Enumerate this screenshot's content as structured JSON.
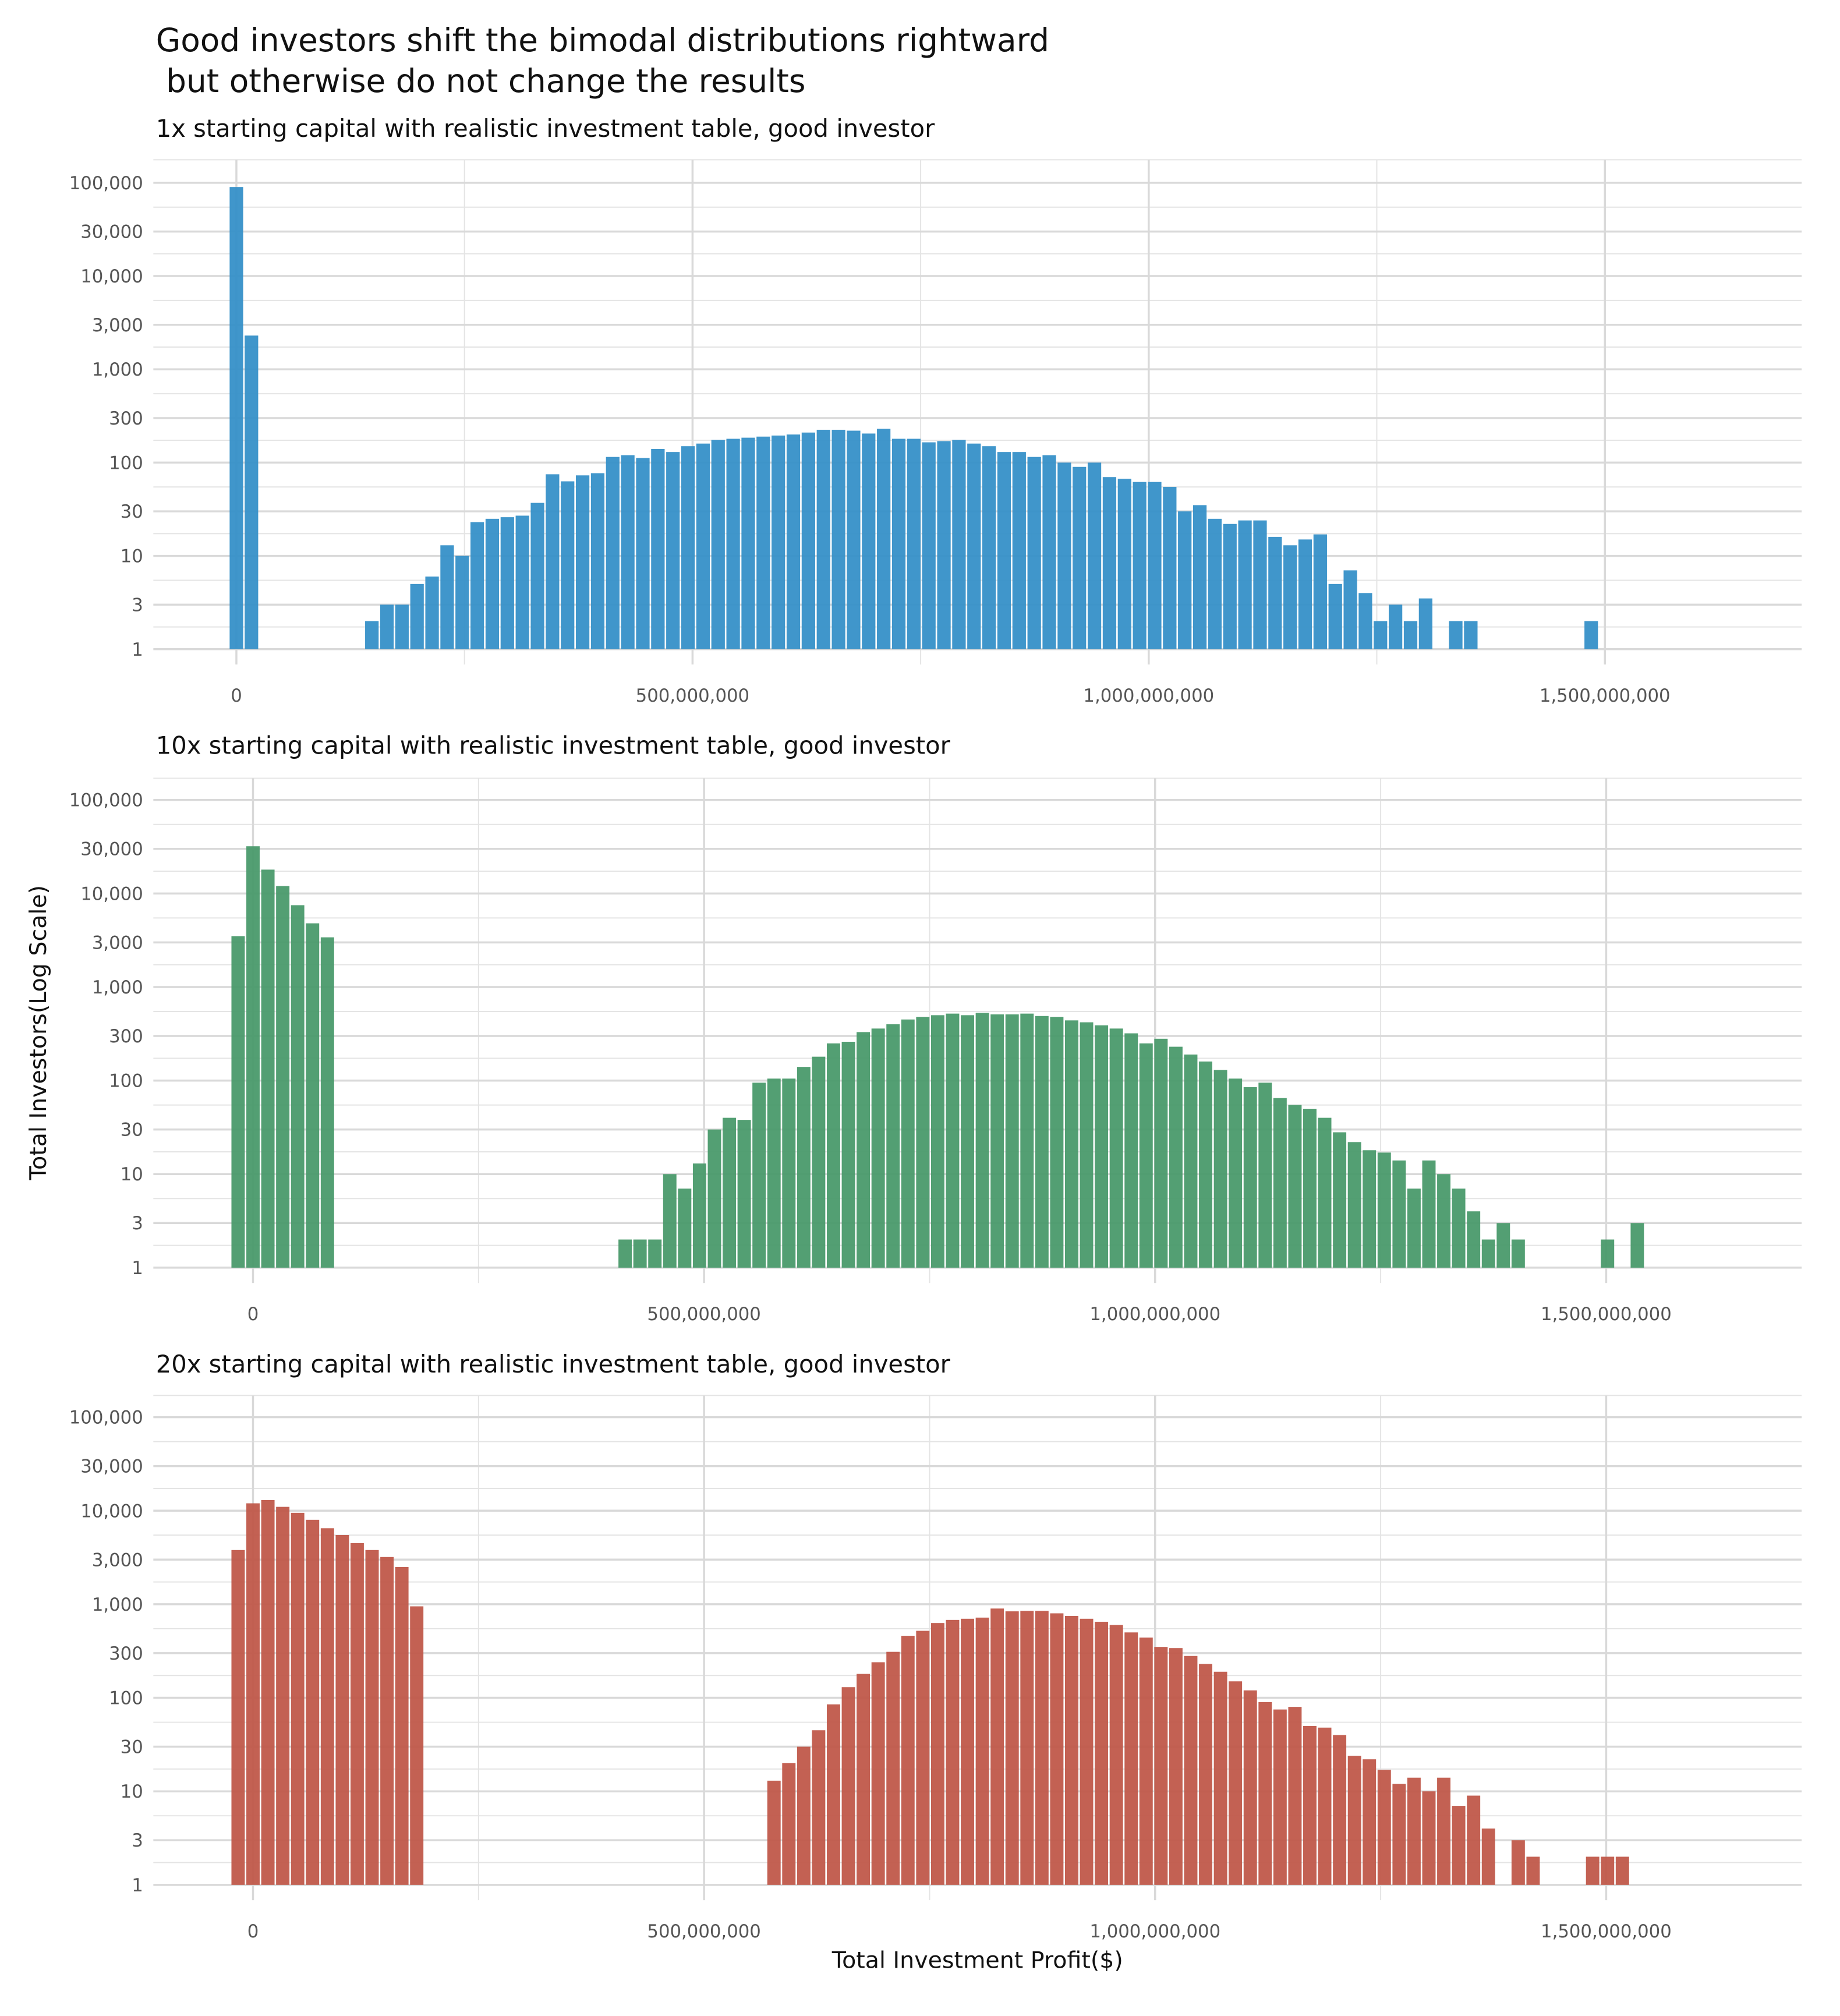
{
  "chart_data": {
    "type": "bar",
    "title_line1": "Good investors shift the bimodal distributions rightward",
    "title_line2": " but otherwise do not change the results",
    "xlabel": "Total Investment Profit($)",
    "ylabel": "Total Investors(Log Scale)",
    "y_scale": "log10",
    "ylim": [
      1,
      150000
    ],
    "y_ticks": [
      1,
      3,
      10,
      30,
      100,
      300,
      1000,
      3000,
      10000,
      30000,
      100000
    ],
    "y_tick_labels": [
      "1",
      "3",
      "10",
      "30",
      "100",
      "300",
      "1,000",
      "3,000",
      "10,000",
      "30,000",
      "100,000"
    ],
    "x_ticks": [
      0,
      500000000,
      1000000000,
      1500000000
    ],
    "x_tick_labels": [
      "0",
      "500,000,000",
      "1,000,000,000",
      "1,500,000,000"
    ],
    "grid": true,
    "panels": [
      {
        "subtitle": "1x starting capital with realistic investment table, good investor",
        "color": "#3690c8",
        "xlim": [
          -180000000,
          1710000000
        ],
        "bin_width": 16500000,
        "first_bin_center": 0,
        "counts": [
          90000,
          2300,
          0,
          0,
          0,
          0,
          0,
          0,
          0,
          2,
          3,
          3,
          5,
          6,
          13,
          10,
          23,
          25,
          26,
          27,
          37,
          75,
          63,
          73,
          77,
          115,
          120,
          112,
          140,
          130,
          150,
          160,
          175,
          180,
          185,
          190,
          195,
          200,
          210,
          225,
          225,
          220,
          205,
          230,
          180,
          180,
          165,
          170,
          175,
          160,
          150,
          130,
          130,
          115,
          120,
          100,
          90,
          100,
          70,
          67,
          62,
          62,
          55,
          30,
          35,
          25,
          22,
          24,
          24,
          16,
          13,
          15,
          17,
          5,
          7,
          4,
          2,
          3,
          2,
          3.5,
          0,
          2,
          2,
          0,
          0,
          0,
          0,
          0,
          0,
          0,
          2
        ]
      },
      {
        "subtitle": "10x starting capital with realistic investment table, good investor",
        "color": "#4a9a6c",
        "xlim": [
          -220000000,
          1710000000
        ],
        "bin_width": 16500000,
        "first_bin_center": -16500000,
        "counts": [
          3500,
          32000,
          18000,
          12000,
          7500,
          4800,
          3400,
          0,
          0,
          0,
          0,
          0,
          0,
          0,
          0,
          0,
          0,
          0,
          0,
          0,
          0,
          0,
          0,
          0,
          0,
          0,
          2,
          2,
          2,
          10,
          7,
          13,
          30,
          40,
          38,
          95,
          105,
          105,
          140,
          180,
          250,
          260,
          330,
          360,
          400,
          450,
          480,
          500,
          520,
          500,
          530,
          510,
          510,
          520,
          490,
          480,
          440,
          420,
          390,
          360,
          320,
          250,
          280,
          230,
          190,
          160,
          130,
          105,
          85,
          95,
          65,
          55,
          50,
          40,
          28,
          22,
          18,
          17,
          14,
          7,
          14,
          10,
          7,
          4,
          2,
          3,
          2,
          0,
          0,
          0,
          0,
          0,
          2,
          0,
          3
        ]
      },
      {
        "subtitle": "20x starting capital with realistic investment table, good investor",
        "color": "#c0584a",
        "xlim": [
          -220000000,
          1710000000
        ],
        "bin_width": 16500000,
        "first_bin_center": -16500000,
        "counts": [
          3800,
          12000,
          13000,
          11000,
          9500,
          8000,
          6500,
          5500,
          4500,
          3800,
          3200,
          2500,
          950,
          0,
          0,
          0,
          0,
          0,
          0,
          0,
          0,
          0,
          0,
          0,
          0,
          0,
          0,
          0,
          0,
          0,
          0,
          0,
          0,
          0,
          0,
          0,
          13,
          20,
          30,
          45,
          85,
          130,
          180,
          240,
          310,
          460,
          520,
          630,
          680,
          700,
          720,
          900,
          840,
          850,
          850,
          800,
          750,
          700,
          650,
          600,
          500,
          440,
          350,
          340,
          280,
          230,
          190,
          150,
          120,
          90,
          75,
          80,
          50,
          48,
          40,
          24,
          22,
          17,
          12,
          14,
          10,
          14,
          7,
          9,
          4,
          0,
          3,
          2,
          0,
          0,
          0,
          2,
          2,
          2
        ]
      }
    ]
  }
}
